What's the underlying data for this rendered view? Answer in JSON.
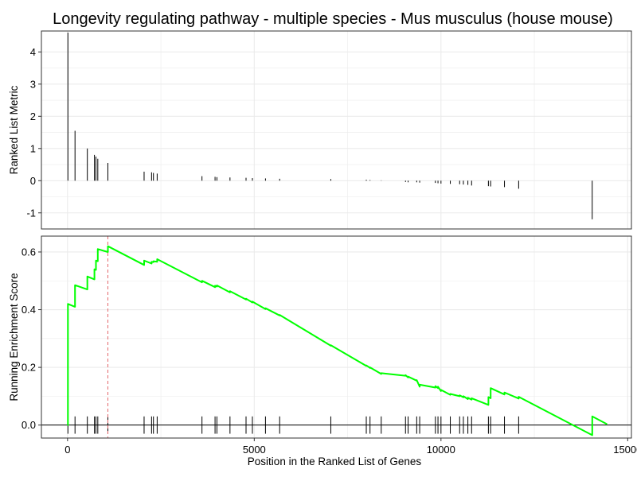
{
  "chart_data": {
    "type": "line",
    "title": "Longevity regulating pathway - multiple species - Mus musculus (house mouse)",
    "xlabel": "Position in the Ranked List of Genes",
    "xlim": [
      -700,
      15100
    ],
    "xticks": [
      0,
      5000,
      10000,
      15000
    ],
    "grid": true,
    "colors": {
      "running_score": "#00ff00",
      "leading_edge_line": "#e3676b",
      "bars": "#000000",
      "grid": "#ebebeb",
      "panel_border": "#333333"
    },
    "panels": [
      {
        "name": "ranked_list",
        "ylabel": "Ranked List Metric",
        "ylim": [
          -1.5,
          4.65
        ],
        "yticks": [
          -1,
          0,
          1,
          2,
          3,
          4
        ],
        "bars": [
          {
            "x": 10,
            "y": 4.6
          },
          {
            "x": 200,
            "y": 1.55
          },
          {
            "x": 530,
            "y": 1.0
          },
          {
            "x": 720,
            "y": 0.8
          },
          {
            "x": 760,
            "y": 0.75
          },
          {
            "x": 810,
            "y": 0.68
          },
          {
            "x": 1080,
            "y": 0.55
          },
          {
            "x": 2050,
            "y": 0.28
          },
          {
            "x": 2250,
            "y": 0.26
          },
          {
            "x": 2300,
            "y": 0.24
          },
          {
            "x": 2400,
            "y": 0.22
          },
          {
            "x": 3600,
            "y": 0.14
          },
          {
            "x": 3950,
            "y": 0.12
          },
          {
            "x": 4000,
            "y": 0.11
          },
          {
            "x": 4350,
            "y": 0.1
          },
          {
            "x": 4780,
            "y": 0.09
          },
          {
            "x": 4950,
            "y": 0.08
          },
          {
            "x": 5300,
            "y": 0.07
          },
          {
            "x": 5680,
            "y": 0.06
          },
          {
            "x": 7050,
            "y": 0.05
          },
          {
            "x": 8000,
            "y": 0.03
          },
          {
            "x": 8100,
            "y": 0.02
          },
          {
            "x": 8400,
            "y": 0.01
          },
          {
            "x": 9050,
            "y": -0.04
          },
          {
            "x": 9120,
            "y": -0.05
          },
          {
            "x": 9350,
            "y": -0.05
          },
          {
            "x": 9430,
            "y": -0.06
          },
          {
            "x": 9850,
            "y": -0.07
          },
          {
            "x": 9920,
            "y": -0.08
          },
          {
            "x": 10000,
            "y": -0.09
          },
          {
            "x": 10250,
            "y": -0.1
          },
          {
            "x": 10500,
            "y": -0.11
          },
          {
            "x": 10600,
            "y": -0.12
          },
          {
            "x": 10720,
            "y": -0.13
          },
          {
            "x": 10820,
            "y": -0.15
          },
          {
            "x": 11270,
            "y": -0.17
          },
          {
            "x": 11330,
            "y": -0.18
          },
          {
            "x": 11700,
            "y": -0.2
          },
          {
            "x": 12080,
            "y": -0.25
          },
          {
            "x": 14050,
            "y": -1.2
          }
        ]
      },
      {
        "name": "running_enrichment",
        "ylabel": "Running Enrichment Score",
        "ylim": [
          -0.045,
          0.655
        ],
        "yticks": [
          0.0,
          0.2,
          0.4,
          0.6
        ],
        "leading_edge_x": 1080,
        "hit_ticks": [
          10,
          200,
          530,
          720,
          760,
          810,
          1080,
          2050,
          2250,
          2300,
          2400,
          3600,
          3950,
          4000,
          4350,
          4780,
          4950,
          5300,
          5680,
          7050,
          8000,
          8100,
          8400,
          9050,
          9120,
          9350,
          9430,
          9850,
          9920,
          10000,
          10250,
          10500,
          10600,
          10720,
          10820,
          11270,
          11330,
          11700,
          12080,
          14050
        ],
        "series": [
          {
            "x": [
              0,
              10,
              10,
              200,
              200,
              530,
              530,
              720,
              720,
              760,
              760,
              810,
              810,
              1080,
              1080,
              2050,
              2050,
              2250,
              2250,
              2300,
              2300,
              2400,
              2400,
              3600,
              3600,
              3950,
              3950,
              4000,
              4000,
              4350,
              4350,
              4780,
              4780,
              4950,
              4950,
              5300,
              5300,
              5680,
              5680,
              7050,
              7050,
              8000,
              8000,
              8100,
              8100,
              8400,
              8400,
              9050,
              9050,
              9120,
              9120,
              9350,
              9350,
              9430,
              9430,
              9850,
              9850,
              9920,
              9920,
              10000,
              10000,
              10250,
              10250,
              10500,
              10500,
              10600,
              10600,
              10720,
              10720,
              10820,
              10820,
              11270,
              11270,
              11330,
              11330,
              11700,
              11700,
              12080,
              12080,
              14050,
              14050,
              14450
            ],
            "y": [
              0.0,
              0.0,
              0.42,
              0.41,
              0.485,
              0.47,
              0.515,
              0.505,
              0.54,
              0.538,
              0.57,
              0.568,
              0.61,
              0.6,
              0.62,
              0.555,
              0.57,
              0.56,
              0.566,
              0.565,
              0.568,
              0.566,
              0.575,
              0.495,
              0.5,
              0.478,
              0.483,
              0.48,
              0.484,
              0.46,
              0.464,
              0.435,
              0.438,
              0.425,
              0.428,
              0.402,
              0.405,
              0.38,
              0.382,
              0.275,
              0.277,
              0.205,
              0.207,
              0.198,
              0.2,
              0.177,
              0.18,
              0.171,
              0.173,
              0.165,
              0.168,
              0.154,
              0.156,
              0.133,
              0.14,
              0.13,
              0.135,
              0.128,
              0.133,
              0.118,
              0.122,
              0.105,
              0.108,
              0.1,
              0.103,
              0.096,
              0.1,
              0.09,
              0.095,
              0.088,
              0.093,
              0.07,
              0.097,
              0.093,
              0.128,
              0.106,
              0.113,
              0.092,
              0.098,
              -0.035,
              0.03,
              0.003
            ]
          }
        ]
      }
    ]
  }
}
